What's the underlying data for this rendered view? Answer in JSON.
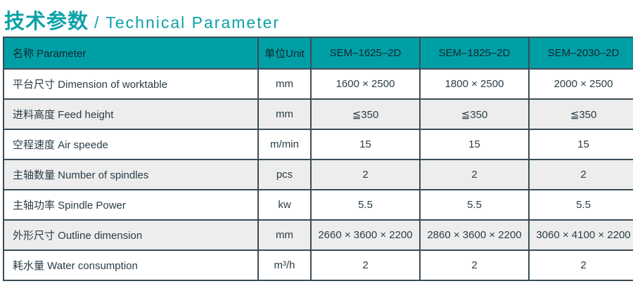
{
  "title": {
    "zh": "技术参数",
    "en": "/ Technical Parameter"
  },
  "colors": {
    "accent_teal": "#009FA6",
    "border": "#3A4C56",
    "text": "#2B3C46",
    "row_alt_bg": "#EDEDED"
  },
  "table": {
    "headers": [
      "名称 Parameter",
      "单位Unit",
      "SEM–1625–2D",
      "SEM–1825–2D",
      "SEM–2030–2D"
    ],
    "rows": [
      {
        "name": "平台尺寸 Dimension of worktable",
        "unit": "mm",
        "values": [
          "1600 × 2500",
          "1800 × 2500",
          "2000 × 2500"
        ]
      },
      {
        "name": "进料高度 Feed height",
        "unit": "mm",
        "values": [
          "≦350",
          "≦350",
          "≦350"
        ]
      },
      {
        "name": "空程速度 Air speede",
        "unit": "m/min",
        "values": [
          "15",
          "15",
          "15"
        ]
      },
      {
        "name": "主轴数量 Number of spindles",
        "unit": "pcs",
        "values": [
          "2",
          "2",
          "2"
        ]
      },
      {
        "name": "主轴功率 Spindle Power",
        "unit": "kw",
        "values": [
          "5.5",
          "5.5",
          "5.5"
        ]
      },
      {
        "name": "外形尺寸 Outline dimension",
        "unit": "mm",
        "values": [
          "2660 × 3600 × 2200",
          "2860 × 3600 × 2200",
          "3060 × 4100 × 2200"
        ]
      },
      {
        "name": "耗水量 Water consumption",
        "unit": "m³/h",
        "values": [
          "2",
          "2",
          "2"
        ]
      }
    ]
  }
}
